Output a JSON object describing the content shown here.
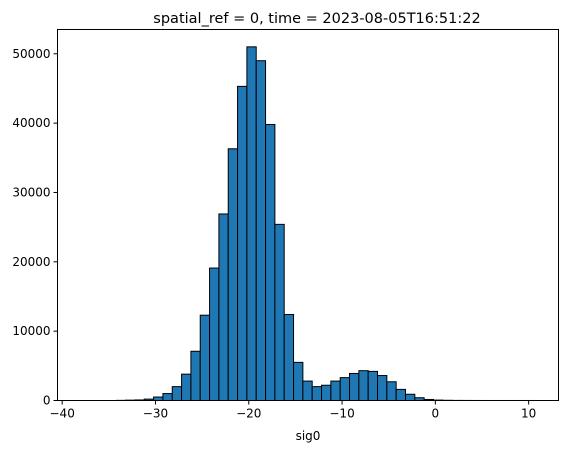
{
  "chart_data": {
    "type": "bar",
    "title": "spatial_ref = 0, time = 2023-08-05T16:51:22",
    "xlabel": "sig0",
    "ylabel": "",
    "xlim": [
      -40.5,
      13.2
    ],
    "ylim": [
      0,
      53500
    ],
    "grid": false,
    "bar_color": "#1f77b4",
    "edge_color": "#000000",
    "x_ticks": [
      {
        "value": -40,
        "label": "−40"
      },
      {
        "value": -30,
        "label": "−30"
      },
      {
        "value": -20,
        "label": "−20"
      },
      {
        "value": -10,
        "label": "−10"
      },
      {
        "value": 0,
        "label": "0"
      },
      {
        "value": 10,
        "label": "10"
      }
    ],
    "y_ticks": [
      {
        "value": 0,
        "label": "0"
      },
      {
        "value": 10000,
        "label": "10000"
      },
      {
        "value": 20000,
        "label": "20000"
      },
      {
        "value": 30000,
        "label": "30000"
      },
      {
        "value": 40000,
        "label": "40000"
      },
      {
        "value": 50000,
        "label": "50000"
      }
    ],
    "bin_start": -38.2,
    "bin_width": 1.0,
    "values": [
      0,
      0,
      0,
      0,
      20,
      50,
      80,
      200,
      500,
      1000,
      2000,
      3800,
      7100,
      12300,
      19100,
      26900,
      36300,
      45300,
      51000,
      49000,
      39800,
      25400,
      12400,
      5500,
      2800,
      2000,
      2200,
      2800,
      3300,
      3900,
      4300,
      4200,
      3600,
      2700,
      1600,
      900,
      400,
      150,
      60,
      30,
      15,
      10,
      5,
      3,
      2,
      1,
      1,
      1,
      1,
      0
    ]
  }
}
